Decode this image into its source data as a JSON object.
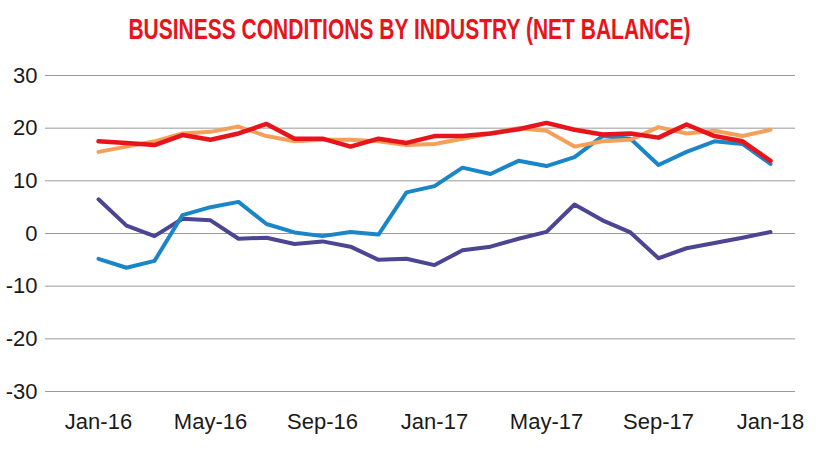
{
  "chart_data": {
    "type": "line",
    "title": "BUSINESS CONDITIONS BY INDUSTRY (NET BALANCE)",
    "categories": [
      "Jan-16",
      null,
      null,
      null,
      "May-16",
      null,
      null,
      null,
      "Sep-16",
      null,
      null,
      null,
      "Jan-17",
      null,
      null,
      null,
      "May-17",
      null,
      null,
      null,
      "Sep-17",
      null,
      null,
      null,
      "Jan-18"
    ],
    "series": [
      {
        "color": "#4b4593",
        "values": [
          6.5,
          1.5,
          -0.5,
          2.8,
          2.5,
          -1.0,
          -0.8,
          -2.0,
          -1.5,
          -2.5,
          -5.0,
          -4.8,
          -6.0,
          -3.2,
          -2.5,
          -1.0,
          0.3,
          5.5,
          2.5,
          0.2,
          -4.7,
          -2.8,
          -1.8,
          -0.8,
          0.3
        ]
      },
      {
        "color": "#1a86c8",
        "values": [
          -4.8,
          -6.5,
          -5.2,
          3.5,
          5.0,
          6.0,
          1.8,
          0.2,
          -0.5,
          0.3,
          -0.2,
          7.8,
          9.0,
          12.5,
          11.3,
          13.8,
          12.8,
          14.5,
          18.5,
          18.0,
          13.0,
          15.5,
          17.5,
          17.0,
          13.2
        ]
      },
      {
        "color": "#f5a05a",
        "values": [
          15.5,
          16.5,
          17.5,
          19.0,
          19.3,
          20.3,
          18.5,
          17.5,
          17.8,
          17.8,
          17.5,
          16.8,
          17.0,
          18.0,
          19.0,
          20.0,
          19.5,
          16.5,
          17.5,
          17.8,
          20.2,
          19.0,
          19.5,
          18.5,
          19.7
        ]
      },
      {
        "color": "#e8141b",
        "values": [
          17.5,
          17.2,
          16.8,
          18.7,
          17.8,
          19.0,
          20.8,
          18.0,
          18.0,
          16.5,
          18.0,
          17.2,
          18.5,
          18.5,
          19.0,
          19.8,
          21.0,
          19.7,
          18.8,
          19.0,
          18.2,
          20.7,
          18.5,
          17.5,
          13.8
        ]
      }
    ],
    "ylim": [
      -30,
      30
    ],
    "yticks": [
      -30,
      -20,
      -10,
      0,
      10,
      20,
      30
    ],
    "grid": true
  }
}
